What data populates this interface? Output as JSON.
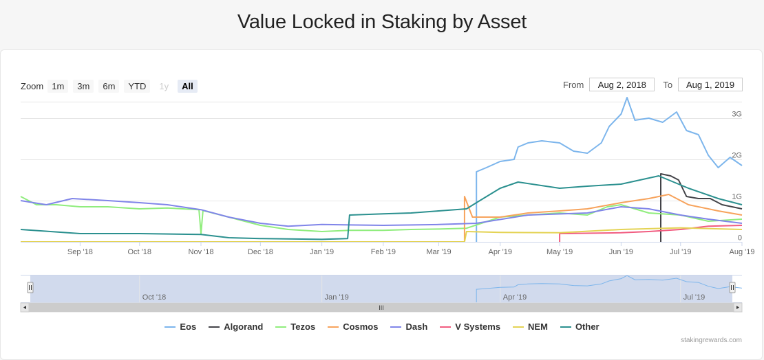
{
  "page_title": "Value Locked in Staking by Asset",
  "range_selector": {
    "zoom_label": "Zoom",
    "buttons": [
      {
        "label": "1m",
        "state": "normal"
      },
      {
        "label": "3m",
        "state": "normal"
      },
      {
        "label": "6m",
        "state": "normal"
      },
      {
        "label": "YTD",
        "state": "normal"
      },
      {
        "label": "1y",
        "state": "disabled"
      },
      {
        "label": "All",
        "state": "selected"
      }
    ],
    "from_label": "From",
    "from_value": "Aug 2, 2018",
    "to_label": "To",
    "to_value": "Aug 1, 2019"
  },
  "navigator": {
    "labels": [
      "Oct '18",
      "Jan '19",
      "Apr '19",
      "Jul '19"
    ],
    "scrollbar_grip": "III"
  },
  "credit": "stakingrewards.com",
  "chart_data": {
    "type": "line",
    "title": "Value Locked in Staking by Asset",
    "x_axis": {
      "type": "datetime",
      "range": [
        "2018-08-02",
        "2019-08-01"
      ],
      "tick_labels": [
        "Sep '18",
        "Oct '18",
        "Nov '18",
        "Dec '18",
        "Jan '19",
        "Feb '19",
        "Mar '19",
        "Apr '19",
        "May '19",
        "Jun '19",
        "Jul '19",
        "Aug '19"
      ]
    },
    "y_axis": {
      "range": [
        0,
        3400000000
      ],
      "tick_values": [
        0,
        1000000000,
        2000000000,
        3000000000
      ],
      "tick_labels": [
        "0",
        "1G",
        "2G",
        "3G"
      ],
      "side": "right",
      "grid": true
    },
    "legend_position": "bottom",
    "series": [
      {
        "name": "Eos",
        "color": "#7cb5ec",
        "points": [
          [
            "2019-03-20",
            0
          ],
          [
            "2019-03-20",
            1700000000
          ],
          [
            "2019-03-25",
            1800000000
          ],
          [
            "2019-04-01",
            1950000000
          ],
          [
            "2019-04-08",
            2000000000
          ],
          [
            "2019-04-10",
            2300000000
          ],
          [
            "2019-04-15",
            2400000000
          ],
          [
            "2019-04-22",
            2450000000
          ],
          [
            "2019-05-01",
            2400000000
          ],
          [
            "2019-05-08",
            2200000000
          ],
          [
            "2019-05-15",
            2150000000
          ],
          [
            "2019-05-22",
            2400000000
          ],
          [
            "2019-05-26",
            2800000000
          ],
          [
            "2019-06-01",
            3100000000
          ],
          [
            "2019-06-04",
            3500000000
          ],
          [
            "2019-06-08",
            2950000000
          ],
          [
            "2019-06-15",
            3000000000
          ],
          [
            "2019-06-22",
            2900000000
          ],
          [
            "2019-06-29",
            3150000000
          ],
          [
            "2019-07-04",
            2700000000
          ],
          [
            "2019-07-10",
            2600000000
          ],
          [
            "2019-07-15",
            2100000000
          ],
          [
            "2019-07-20",
            1800000000
          ],
          [
            "2019-07-26",
            2050000000
          ],
          [
            "2019-08-01",
            1850000000
          ]
        ]
      },
      {
        "name": "Algorand",
        "color": "#434348",
        "points": [
          [
            "2019-06-21",
            0
          ],
          [
            "2019-06-21",
            1650000000
          ],
          [
            "2019-06-26",
            1600000000
          ],
          [
            "2019-06-30",
            1500000000
          ],
          [
            "2019-07-04",
            1100000000
          ],
          [
            "2019-07-10",
            1050000000
          ],
          [
            "2019-07-16",
            1050000000
          ],
          [
            "2019-07-22",
            900000000
          ],
          [
            "2019-08-01",
            800000000
          ]
        ]
      },
      {
        "name": "Tezos",
        "color": "#90ed7d",
        "points": [
          [
            "2018-08-02",
            1100000000
          ],
          [
            "2018-08-10",
            900000000
          ],
          [
            "2018-08-20",
            900000000
          ],
          [
            "2018-09-01",
            850000000
          ],
          [
            "2018-09-15",
            850000000
          ],
          [
            "2018-10-01",
            800000000
          ],
          [
            "2018-10-15",
            820000000
          ],
          [
            "2018-10-31",
            780000000
          ],
          [
            "2018-11-01",
            200000000
          ],
          [
            "2018-11-02",
            760000000
          ],
          [
            "2018-11-15",
            600000000
          ],
          [
            "2018-12-01",
            400000000
          ],
          [
            "2018-12-15",
            300000000
          ],
          [
            "2019-01-01",
            250000000
          ],
          [
            "2019-01-15",
            280000000
          ],
          [
            "2019-02-01",
            280000000
          ],
          [
            "2019-02-15",
            300000000
          ],
          [
            "2019-03-01",
            310000000
          ],
          [
            "2019-03-15",
            330000000
          ],
          [
            "2019-04-01",
            600000000
          ],
          [
            "2019-04-15",
            650000000
          ],
          [
            "2019-05-01",
            700000000
          ],
          [
            "2019-05-15",
            650000000
          ],
          [
            "2019-05-25",
            850000000
          ],
          [
            "2019-06-01",
            900000000
          ],
          [
            "2019-06-15",
            700000000
          ],
          [
            "2019-07-01",
            650000000
          ],
          [
            "2019-07-15",
            500000000
          ],
          [
            "2019-08-01",
            550000000
          ]
        ]
      },
      {
        "name": "Cosmos",
        "color": "#f7a35c",
        "points": [
          [
            "2019-03-14",
            0
          ],
          [
            "2019-03-14",
            1100000000
          ],
          [
            "2019-03-18",
            600000000
          ],
          [
            "2019-04-01",
            600000000
          ],
          [
            "2019-04-15",
            700000000
          ],
          [
            "2019-05-01",
            750000000
          ],
          [
            "2019-05-15",
            800000000
          ],
          [
            "2019-06-01",
            950000000
          ],
          [
            "2019-06-15",
            1050000000
          ],
          [
            "2019-06-25",
            1150000000
          ],
          [
            "2019-07-05",
            900000000
          ],
          [
            "2019-07-20",
            750000000
          ],
          [
            "2019-08-01",
            650000000
          ]
        ]
      },
      {
        "name": "Dash",
        "color": "#8085e9",
        "points": [
          [
            "2018-08-02",
            1000000000
          ],
          [
            "2018-08-15",
            900000000
          ],
          [
            "2018-08-28",
            1050000000
          ],
          [
            "2018-09-15",
            1000000000
          ],
          [
            "2018-10-01",
            950000000
          ],
          [
            "2018-10-15",
            900000000
          ],
          [
            "2018-11-01",
            780000000
          ],
          [
            "2018-11-15",
            600000000
          ],
          [
            "2018-12-01",
            450000000
          ],
          [
            "2018-12-15",
            380000000
          ],
          [
            "2019-01-01",
            420000000
          ],
          [
            "2019-02-01",
            400000000
          ],
          [
            "2019-03-01",
            420000000
          ],
          [
            "2019-03-20",
            450000000
          ],
          [
            "2019-04-15",
            650000000
          ],
          [
            "2019-05-15",
            700000000
          ],
          [
            "2019-06-01",
            850000000
          ],
          [
            "2019-06-15",
            800000000
          ],
          [
            "2019-07-01",
            650000000
          ],
          [
            "2019-07-15",
            550000000
          ],
          [
            "2019-08-01",
            450000000
          ]
        ]
      },
      {
        "name": "V Systems",
        "color": "#f15c80",
        "points": [
          [
            "2019-05-01",
            0
          ],
          [
            "2019-05-01",
            200000000
          ],
          [
            "2019-06-01",
            220000000
          ],
          [
            "2019-06-15",
            250000000
          ],
          [
            "2019-07-01",
            300000000
          ],
          [
            "2019-07-15",
            380000000
          ],
          [
            "2019-08-01",
            400000000
          ]
        ]
      },
      {
        "name": "NEM",
        "color": "#e4d354",
        "points": [
          [
            "2018-08-02",
            0
          ],
          [
            "2019-03-14",
            0
          ],
          [
            "2019-03-15",
            250000000
          ],
          [
            "2019-04-01",
            230000000
          ],
          [
            "2019-05-01",
            220000000
          ],
          [
            "2019-06-01",
            300000000
          ],
          [
            "2019-07-01",
            340000000
          ],
          [
            "2019-08-01",
            300000000
          ]
        ]
      },
      {
        "name": "Other",
        "color": "#2b908f",
        "points": [
          [
            "2018-08-02",
            300000000
          ],
          [
            "2018-09-01",
            200000000
          ],
          [
            "2018-10-01",
            200000000
          ],
          [
            "2018-11-01",
            180000000
          ],
          [
            "2018-11-15",
            100000000
          ],
          [
            "2018-12-01",
            80000000
          ],
          [
            "2019-01-01",
            60000000
          ],
          [
            "2019-01-14",
            80000000
          ],
          [
            "2019-01-15",
            650000000
          ],
          [
            "2019-02-01",
            680000000
          ],
          [
            "2019-02-15",
            700000000
          ],
          [
            "2019-03-01",
            750000000
          ],
          [
            "2019-03-15",
            800000000
          ],
          [
            "2019-03-20",
            950000000
          ],
          [
            "2019-04-01",
            1300000000
          ],
          [
            "2019-04-10",
            1450000000
          ],
          [
            "2019-05-01",
            1300000000
          ],
          [
            "2019-05-15",
            1350000000
          ],
          [
            "2019-06-01",
            1400000000
          ],
          [
            "2019-06-20",
            1600000000
          ],
          [
            "2019-07-05",
            1300000000
          ],
          [
            "2019-07-20",
            1050000000
          ],
          [
            "2019-08-01",
            900000000
          ]
        ]
      }
    ]
  }
}
